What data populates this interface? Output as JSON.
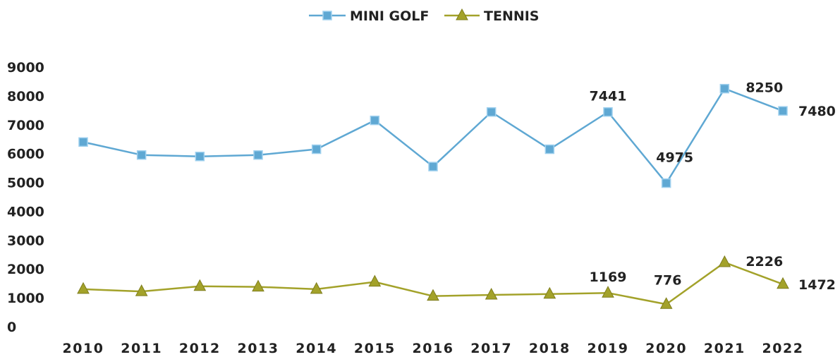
{
  "chart_data": {
    "type": "line",
    "title": "",
    "xlabel": "",
    "ylabel": "",
    "categories": [
      "2010",
      "2011",
      "2012",
      "2013",
      "2014",
      "2015",
      "2016",
      "2017",
      "2018",
      "2019",
      "2020",
      "2021",
      "2022"
    ],
    "ylim": [
      0,
      9000
    ],
    "yticks": [
      "0",
      "1000",
      "2000",
      "3000",
      "4000",
      "5000",
      "6000",
      "7000",
      "8000",
      "9000"
    ],
    "grid": false,
    "legend_position": "top-center",
    "series": [
      {
        "name": "MINI GOLF",
        "color": "#5fa8d3",
        "marker": "square",
        "values": [
          6400,
          5950,
          5900,
          5950,
          6150,
          7150,
          5550,
          7441,
          6150,
          7441,
          4975,
          8250,
          7480
        ],
        "labels": {
          "9": "7441",
          "10": "4975",
          "11": "8250",
          "12": "7480"
        }
      },
      {
        "name": "TENNIS",
        "color": "#a3a22a",
        "marker": "triangle",
        "values": [
          1300,
          1220,
          1400,
          1380,
          1300,
          1550,
          1060,
          1100,
          1130,
          1169,
          776,
          2226,
          1472
        ],
        "labels": {
          "9": "1169",
          "10": "776",
          "11": "2226",
          "12": "1472"
        }
      }
    ]
  }
}
